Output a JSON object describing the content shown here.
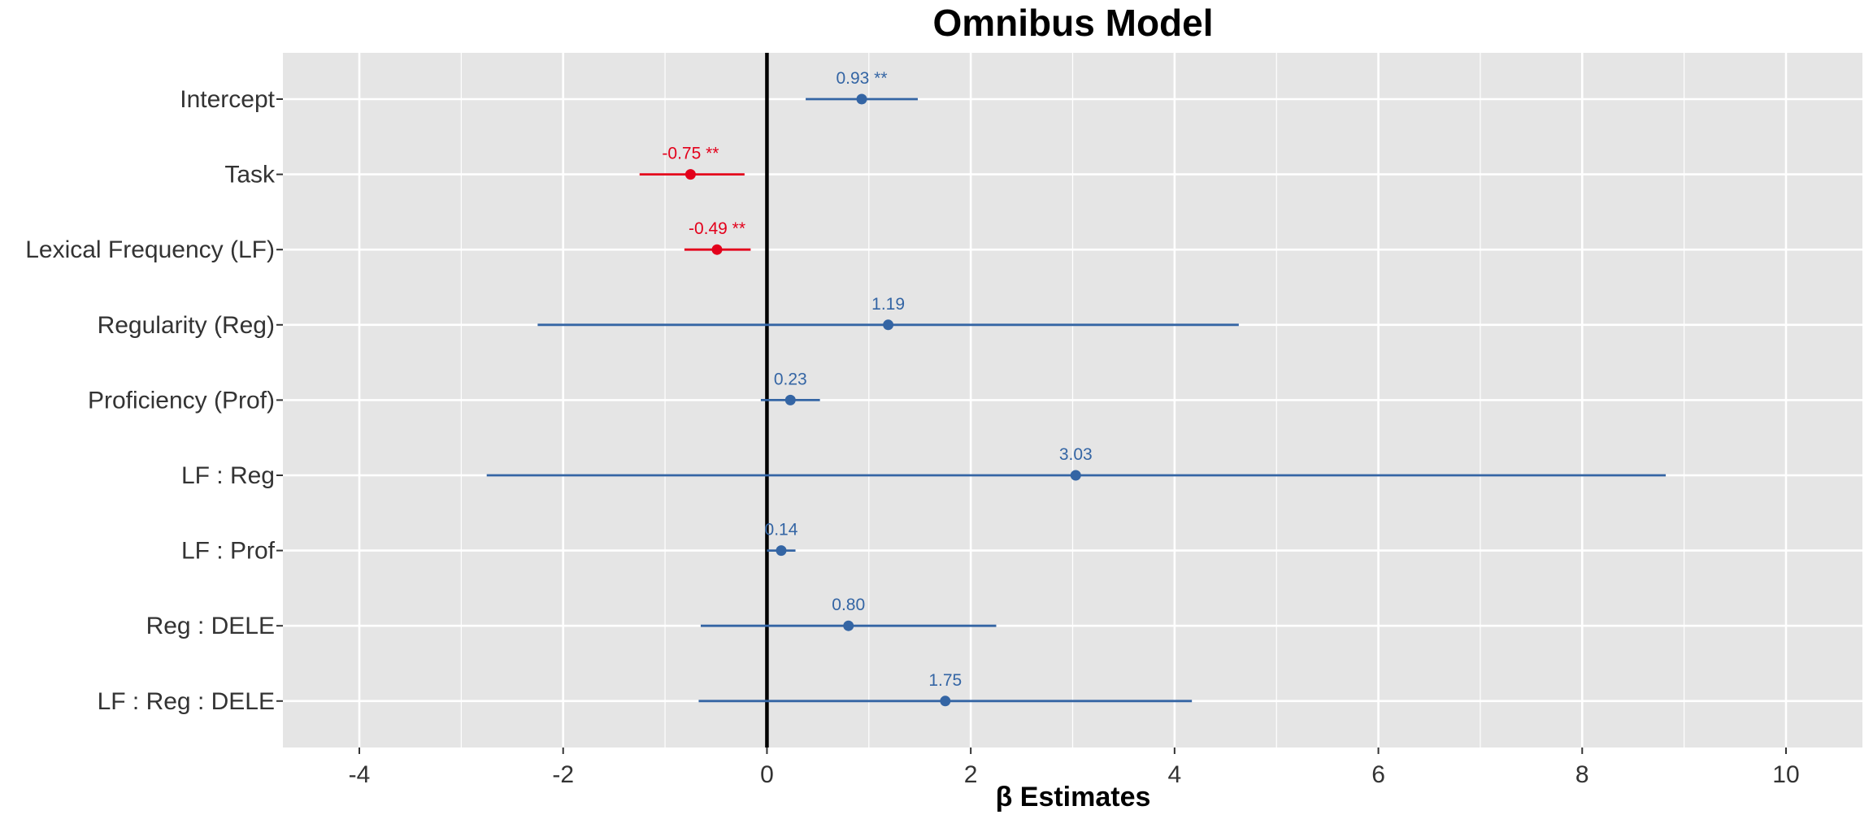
{
  "chart_data": {
    "type": "scatter",
    "subtype": "coefficient-plot",
    "title": "Omnibus Model",
    "xlabel": "β Estimates",
    "ylabel": "",
    "xlim": [
      -4.75,
      10.75
    ],
    "xticks": [
      -4,
      -2,
      0,
      2,
      4,
      6,
      8,
      10
    ],
    "grid": true,
    "reference_line": 0,
    "colors": {
      "positive": "#3465A4",
      "negative": "#E3001B",
      "panel": "#E5E5E5",
      "grid": "#FFFFFF"
    },
    "terms": [
      {
        "label": "Intercept",
        "estimate": 0.93,
        "lower": 0.38,
        "upper": 1.48,
        "annotation": "0.93 **",
        "sign": "positive"
      },
      {
        "label": "Task",
        "estimate": -0.75,
        "lower": -1.25,
        "upper": -0.22,
        "annotation": "-0.75 **",
        "sign": "negative"
      },
      {
        "label": "Lexical Frequency (LF)",
        "estimate": -0.49,
        "lower": -0.81,
        "upper": -0.16,
        "annotation": "-0.49 **",
        "sign": "negative"
      },
      {
        "label": "Regularity (Reg)",
        "estimate": 1.19,
        "lower": -2.25,
        "upper": 4.63,
        "annotation": "1.19",
        "sign": "positive"
      },
      {
        "label": "Proficiency (Prof)",
        "estimate": 0.23,
        "lower": -0.06,
        "upper": 0.52,
        "annotation": "0.23",
        "sign": "positive"
      },
      {
        "label": "LF : Reg",
        "estimate": 3.03,
        "lower": -2.75,
        "upper": 8.82,
        "annotation": "3.03",
        "sign": "positive"
      },
      {
        "label": "LF : Prof",
        "estimate": 0.14,
        "lower": 0.0,
        "upper": 0.28,
        "annotation": "0.14",
        "sign": "positive"
      },
      {
        "label": "Reg : DELE",
        "estimate": 0.8,
        "lower": -0.65,
        "upper": 2.25,
        "annotation": "0.80",
        "sign": "positive"
      },
      {
        "label": "LF : Reg : DELE",
        "estimate": 1.75,
        "lower": -0.67,
        "upper": 4.17,
        "annotation": "1.75",
        "sign": "positive"
      }
    ]
  }
}
